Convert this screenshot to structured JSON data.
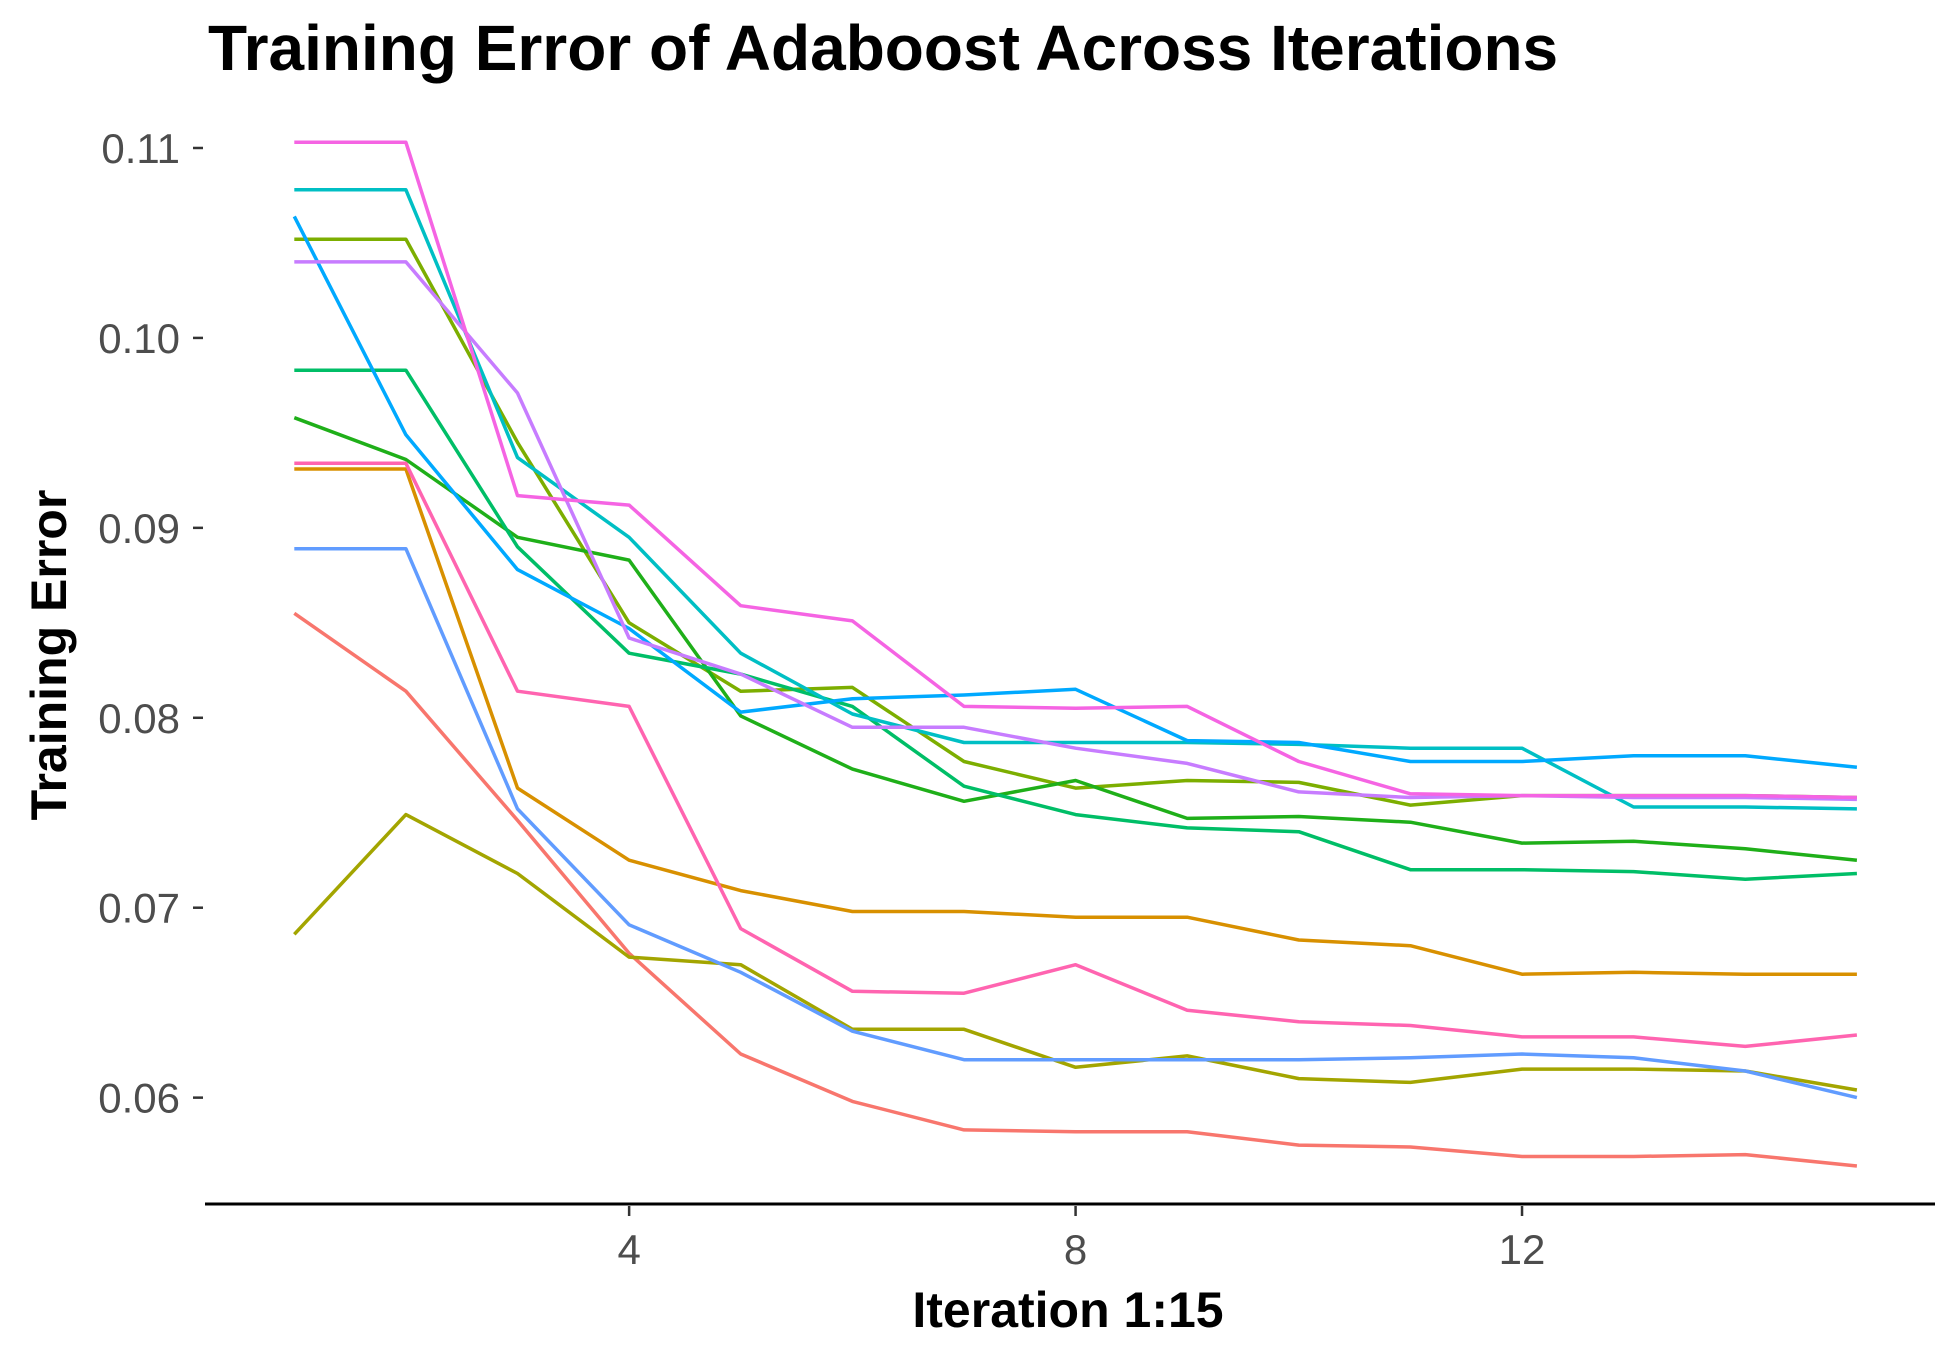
{
  "chart_data": {
    "type": "line",
    "title": "Training Error of Adaboost Across Iterations",
    "xlabel": "Iteration 1:15",
    "ylabel": "Training Error",
    "xlim": [
      0.2,
      15.7
    ],
    "ylim": [
      0.0544,
      0.112
    ],
    "x_ticks": [
      4,
      8,
      12
    ],
    "x_tick_labels": [
      "4",
      "8",
      "12"
    ],
    "y_ticks": [
      0.06,
      0.07,
      0.08,
      0.09,
      0.1,
      0.11
    ],
    "y_tick_labels": [
      "0.06",
      "0.07",
      "0.08",
      "0.09",
      "0.10",
      "0.11"
    ],
    "grid": false,
    "legend": "none",
    "x": [
      1,
      2,
      3,
      4,
      5,
      6,
      7,
      8,
      9,
      10,
      11,
      12,
      13,
      14,
      15
    ],
    "series": [
      {
        "color": "#F8766D",
        "values": [
          0.0855,
          0.0814,
          0.0746,
          0.0676,
          0.0623,
          0.0598,
          0.0583,
          0.0582,
          0.0582,
          0.0575,
          0.0574,
          0.0569,
          0.0569,
          0.057,
          0.0564
        ]
      },
      {
        "color": "#D89000",
        "values": [
          0.0931,
          0.0931,
          0.0763,
          0.0725,
          0.0709,
          0.0698,
          0.0698,
          0.0695,
          0.0695,
          0.0683,
          0.068,
          0.0665,
          0.0666,
          0.0665,
          0.0665
        ]
      },
      {
        "color": "#A3A500",
        "values": [
          0.0686,
          0.0749,
          0.0718,
          0.0674,
          0.067,
          0.0636,
          0.0636,
          0.0616,
          0.0622,
          0.061,
          0.0608,
          0.0615,
          0.0615,
          0.0614,
          0.0604
        ]
      },
      {
        "color": "#7CAE00",
        "values": [
          0.1052,
          0.1052,
          0.0945,
          0.085,
          0.0814,
          0.0816,
          0.0777,
          0.0763,
          0.0767,
          0.0766,
          0.0754,
          0.0759,
          0.0759,
          0.0759,
          0.0758
        ]
      },
      {
        "color": "#1FAF19",
        "values": [
          0.0958,
          0.0936,
          0.0895,
          0.0883,
          0.0801,
          0.0773,
          0.0756,
          0.0767,
          0.0747,
          0.0748,
          0.0745,
          0.0734,
          0.0735,
          0.0731,
          0.0725
        ]
      },
      {
        "color": "#00BE67",
        "values": [
          0.0983,
          0.0983,
          0.089,
          0.0834,
          0.0823,
          0.0806,
          0.0764,
          0.0749,
          0.0742,
          0.074,
          0.072,
          0.072,
          0.0719,
          0.0715,
          0.0718
        ]
      },
      {
        "color": "#00BFC4",
        "values": [
          0.1078,
          0.1078,
          0.0937,
          0.0895,
          0.0834,
          0.0802,
          0.0787,
          0.0787,
          0.0787,
          0.0786,
          0.0784,
          0.0784,
          0.0753,
          0.0753,
          0.0752
        ]
      },
      {
        "color": "#00A9FF",
        "values": [
          0.1064,
          0.0949,
          0.0878,
          0.0847,
          0.0803,
          0.081,
          0.0812,
          0.0815,
          0.0788,
          0.0787,
          0.0777,
          0.0777,
          0.078,
          0.078,
          0.0774
        ]
      },
      {
        "color": "#619CFF",
        "values": [
          0.0889,
          0.0889,
          0.0752,
          0.0691,
          0.0666,
          0.0635,
          0.062,
          0.062,
          0.062,
          0.062,
          0.0621,
          0.0623,
          0.0621,
          0.0614,
          0.06
        ]
      },
      {
        "color": "#C77CFF",
        "values": [
          0.104,
          0.104,
          0.0971,
          0.0842,
          0.0823,
          0.0795,
          0.0795,
          0.0784,
          0.0776,
          0.0761,
          0.0758,
          0.0759,
          0.0758,
          0.0758,
          0.0757
        ]
      },
      {
        "color": "#F564E3",
        "values": [
          0.1103,
          0.1103,
          0.0917,
          0.0912,
          0.0859,
          0.0851,
          0.0806,
          0.0805,
          0.0806,
          0.0777,
          0.076,
          0.0759,
          0.0759,
          0.0759,
          0.0758
        ]
      },
      {
        "color": "#FF64B0",
        "values": [
          0.0934,
          0.0934,
          0.0814,
          0.0806,
          0.0689,
          0.0656,
          0.0655,
          0.067,
          0.0646,
          0.064,
          0.0638,
          0.0632,
          0.0632,
          0.0627,
          0.0633
        ]
      }
    ]
  }
}
